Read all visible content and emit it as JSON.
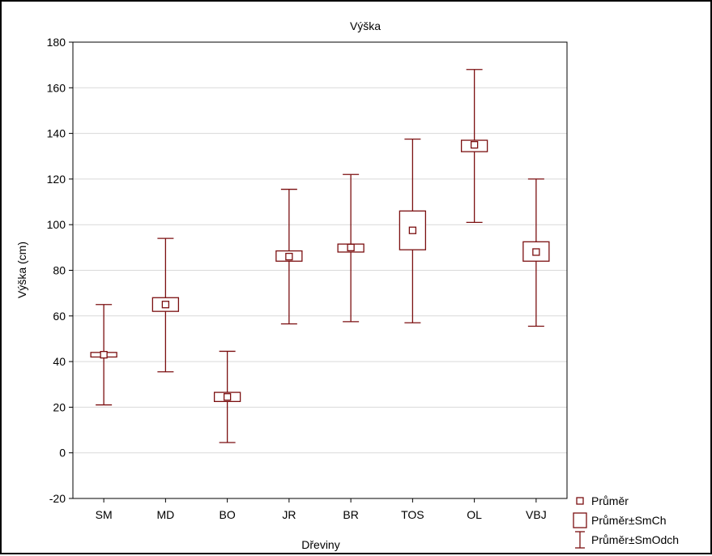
{
  "chart_data": {
    "type": "box",
    "title": "Výška",
    "xlabel": "Dřeviny",
    "ylabel": "Výška (cm)",
    "ylim": [
      -20,
      180
    ],
    "yticks": [
      -20,
      0,
      20,
      40,
      60,
      80,
      100,
      120,
      140,
      160,
      180
    ],
    "grid": true,
    "legend_position": "bottom-right",
    "legend": [
      {
        "label": "Průměr",
        "symbol": "mean"
      },
      {
        "label": "Průměr±SmCh",
        "symbol": "box"
      },
      {
        "label": "Průměr±SmOdch",
        "symbol": "whisker"
      }
    ],
    "categories": [
      "SM",
      "MD",
      "BO",
      "JR",
      "BR",
      "TOS",
      "OL",
      "VBJ"
    ],
    "mean": [
      43,
      65,
      24.5,
      86,
      90,
      97.5,
      135,
      88
    ],
    "se_low": [
      42,
      62,
      22.5,
      84,
      88,
      89,
      132,
      84
    ],
    "se_high": [
      44,
      68,
      26.5,
      88.5,
      91.5,
      106,
      137,
      92.5
    ],
    "sd_low": [
      21,
      35.5,
      4.5,
      56.5,
      57.5,
      57,
      101,
      55.5
    ],
    "sd_high": [
      65,
      94,
      44.5,
      115.5,
      122,
      137.5,
      168,
      120
    ],
    "color": "#7b0f10"
  }
}
